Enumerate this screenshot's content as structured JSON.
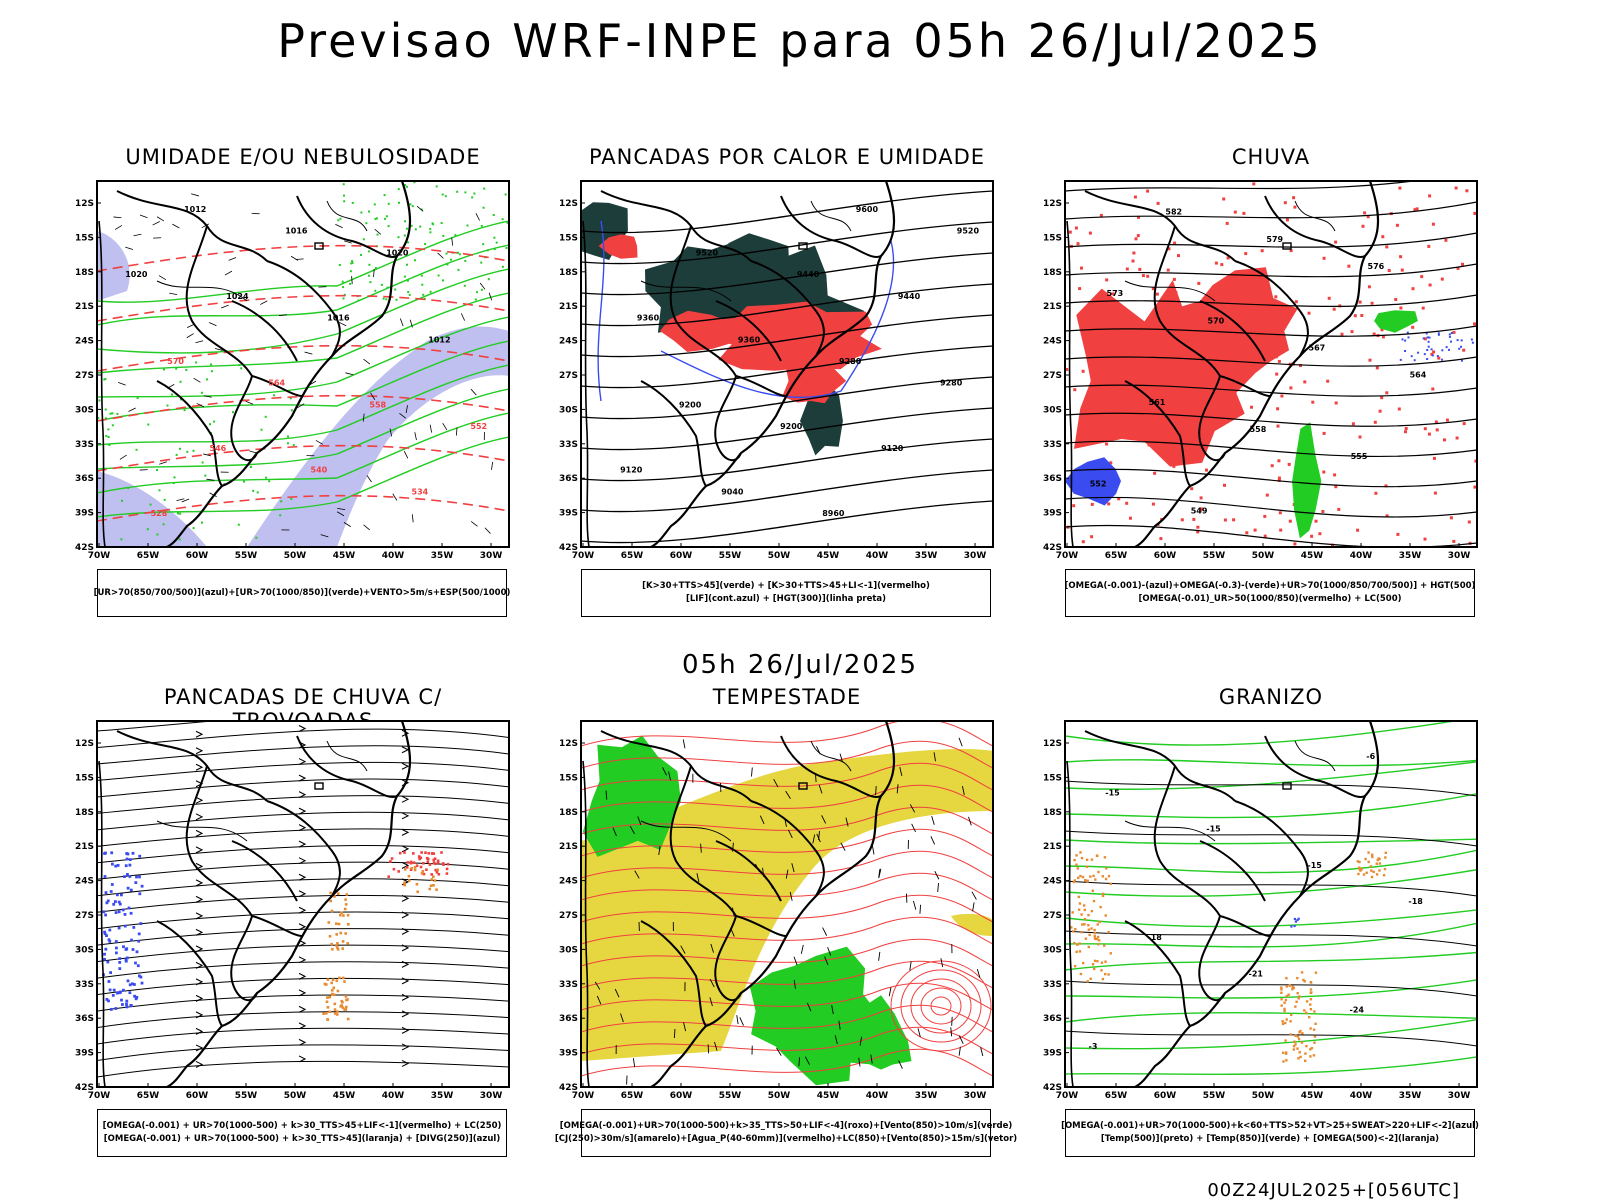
{
  "title": "Previsao WRF-INPE  para 05h 26/Jul/2025",
  "mid_title": "05h 26/Jul/2025",
  "footer": "00Z24JUL2025+[056UTC]",
  "lat_labels": [
    "12S",
    "15S",
    "18S",
    "21S",
    "24S",
    "27S",
    "30S",
    "33S",
    "36S",
    "39S",
    "42S"
  ],
  "lon_labels": [
    "70W",
    "65W",
    "60W",
    "55W",
    "50W",
    "45W",
    "40W",
    "35W",
    "30W"
  ],
  "colors": {
    "blue": "#3a4cf0",
    "green": "#22cc22",
    "red": "#f04040",
    "dark_green": "#1d3d3a",
    "yellow": "#e6d640",
    "orange": "#e88a30",
    "lavender": "#b8b8ee"
  },
  "panels": [
    {
      "id": "umidade",
      "title": "UMIDADE E/OU NEBULOSIDADE",
      "legend": [
        "[UR>70(850/700/500)](azul)+[UR>70(1000/850)](verde)+VENTO>5m/s+ESP(500/1000)"
      ],
      "contour_labels": [
        "1012",
        "1016",
        "1020",
        "1020",
        "1024",
        "1016",
        "1012",
        "570",
        "564",
        "558",
        "552",
        "546",
        "540",
        "534",
        "528"
      ]
    },
    {
      "id": "pancadas_calor",
      "title": "PANCADAS POR CALOR E UMIDADE",
      "legend": [
        "[K>30+TTS>45](verde) + [K>30+TTS>45+LI<-1](vermelho)",
        "[LIF](cont.azul) + [HGT(300)](linha preta)"
      ],
      "contour_labels": [
        "9600",
        "9520",
        "9520",
        "9440",
        "9440",
        "9360",
        "9360",
        "9280",
        "9280",
        "9200",
        "9200",
        "9120",
        "9120",
        "9040",
        "8960"
      ]
    },
    {
      "id": "chuva",
      "title": "CHUVA",
      "legend": [
        "[OMEGA(-0.001)-(azul)+OMEGA(-0.3)-(verde)+UR>70(1000/850/700/500)] + HGT(500)",
        "[OMEGA(-0.01)_UR>50(1000/850)(vermelho) + LC(500)"
      ],
      "contour_labels": [
        "582",
        "579",
        "576",
        "573",
        "570",
        "567",
        "564",
        "561",
        "558",
        "555",
        "552",
        "549"
      ]
    },
    {
      "id": "trovoadas",
      "title": "PANCADAS DE CHUVA C/ TROVOADAS",
      "legend": [
        "[OMEGA(-0.001) + UR>70(1000-500) + k>30_TTS>45+LIF<-1](vermelho) + LC(250)",
        "[OMEGA(-0.001) + UR>70(1000-500) + k>30_TTS>45](laranja) + [DIVG(250)](azul)"
      ],
      "contour_labels": []
    },
    {
      "id": "tempestade",
      "title": "TEMPESTADE",
      "legend": [
        "[OMEGA(-0.001)+UR>70(1000-500)+k>35_TTS>50+LIF<-4](roxo)+[Vento(850)>10m/s](verde)",
        "[CJ(250)>30m/s](amarelo)+[Agua_P(40-60mm)](vermelho)+LC(850)+[Vento(850)>15m/s](vetor)"
      ],
      "contour_labels": []
    },
    {
      "id": "granizo",
      "title": "GRANIZO",
      "legend": [
        "[OMEGA(-0.001)+UR>70(1000-500)+k<60+TTS>52+VT>25+SWEAT>220+LIF<-2](azul)",
        "[Temp(500)](preto) + [Temp(850)](verde) + [OMEGA(500)<-2](laranja)"
      ],
      "contour_labels": [
        "-6",
        "-15",
        "-15",
        "-15",
        "-18",
        "-18",
        "-21",
        "-24",
        "-3"
      ]
    }
  ]
}
